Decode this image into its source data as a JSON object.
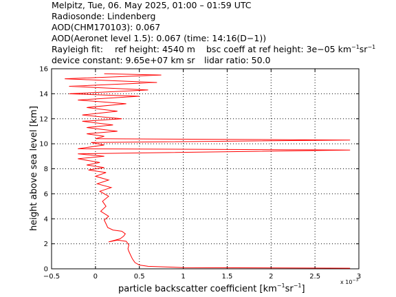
{
  "header": {
    "title": "Melpitz, Tue, 06. May 2025, 01:00 – 01:59 UTC",
    "radiosonde": "Radiosonde: Lindenberg",
    "aod_chm": "AOD(CHM170103): 0.067",
    "aod_aeronet": "AOD(Aeronet level 1.5): 0.067   (time: 14:16(D−1))",
    "rayleigh_fit": "Rayleigh fit:",
    "ref_height": "ref height: 4540 m",
    "bsc_coeff": "bsc coeff at ref height: 3e−05 km",
    "bsc_unit_exp1": "−1",
    "bsc_unit_sr": "sr",
    "bsc_unit_exp2": "−1",
    "device_constant": "device constant: 9.65e+07 km sr",
    "lidar_ratio": "lidar ratio: 50.0"
  },
  "chart_data": {
    "type": "line",
    "xlabel": "particle backscatter coefficient [km",
    "xlabel_exp1": "−1",
    "xlabel_sr": "sr",
    "xlabel_exp2": "−1",
    "xlabel_close": "]",
    "ylabel": "height above sea level [km]",
    "x_scale_note": "x 10",
    "x_scale_exp": "−3",
    "xlim": [
      -0.5,
      3
    ],
    "ylim": [
      0,
      16
    ],
    "xticks": [
      -0.5,
      0,
      0.5,
      1,
      1.5,
      2,
      2.5,
      3
    ],
    "xtick_labels": [
      "−0.5",
      "0",
      "0.5",
      "1",
      "1.5",
      "2",
      "2.5",
      "3"
    ],
    "yticks": [
      0,
      2,
      4,
      6,
      8,
      10,
      12,
      14,
      16
    ],
    "ytick_labels": [
      "0",
      "2",
      "4",
      "6",
      "8",
      "10",
      "12",
      "14",
      "16"
    ],
    "grid": true,
    "line_color": "#ff0000",
    "series": [
      {
        "points": [
          [
            2.9,
            0.05
          ],
          [
            1.0,
            0.1
          ],
          [
            0.6,
            0.2
          ],
          [
            0.5,
            0.3
          ],
          [
            0.45,
            0.5
          ],
          [
            0.42,
            0.8
          ],
          [
            0.4,
            1.1
          ],
          [
            0.38,
            1.4
          ],
          [
            0.37,
            1.6
          ],
          [
            0.38,
            1.9
          ],
          [
            0.35,
            2.2
          ],
          [
            0.25,
            2.3
          ],
          [
            0.15,
            2.15
          ],
          [
            0.28,
            2.4
          ],
          [
            0.32,
            2.6
          ],
          [
            0.34,
            2.8
          ],
          [
            0.3,
            3.0
          ],
          [
            0.2,
            3.1
          ],
          [
            0.14,
            3.3
          ],
          [
            0.12,
            3.6
          ],
          [
            0.1,
            3.9
          ],
          [
            0.15,
            4.2
          ],
          [
            0.06,
            4.6
          ],
          [
            0.12,
            5.0
          ],
          [
            0.08,
            5.4
          ],
          [
            0.15,
            5.8
          ],
          [
            0.05,
            6.2
          ],
          [
            0.18,
            6.5
          ],
          [
            0.02,
            6.8
          ],
          [
            0.15,
            7.1
          ],
          [
            0.0,
            7.4
          ],
          [
            0.12,
            7.7
          ],
          [
            -0.08,
            7.9
          ],
          [
            0.1,
            8.1
          ],
          [
            -0.1,
            8.3
          ],
          [
            0.05,
            8.5
          ],
          [
            -0.2,
            8.8
          ],
          [
            0.1,
            9.0
          ],
          [
            -0.2,
            9.2
          ],
          [
            2.9,
            9.5
          ],
          [
            -0.2,
            9.6
          ],
          [
            0.1,
            9.9
          ],
          [
            -0.05,
            10.1
          ],
          [
            2.9,
            10.3
          ],
          [
            0.0,
            10.4
          ],
          [
            0.1,
            10.6
          ],
          [
            -0.1,
            10.8
          ],
          [
            0.25,
            11.0
          ],
          [
            -0.1,
            11.3
          ],
          [
            0.2,
            11.5
          ],
          [
            -0.15,
            11.8
          ],
          [
            0.3,
            12.0
          ],
          [
            -0.15,
            12.3
          ],
          [
            0.25,
            12.6
          ],
          [
            -0.1,
            12.9
          ],
          [
            0.35,
            13.2
          ],
          [
            -0.2,
            13.5
          ],
          [
            0.5,
            13.8
          ],
          [
            -0.3,
            14.0
          ],
          [
            0.6,
            14.3
          ],
          [
            -0.3,
            14.6
          ],
          [
            0.7,
            14.9
          ],
          [
            -0.35,
            15.2
          ],
          [
            0.75,
            15.5
          ],
          [
            0.1,
            15.6
          ]
        ]
      }
    ]
  }
}
